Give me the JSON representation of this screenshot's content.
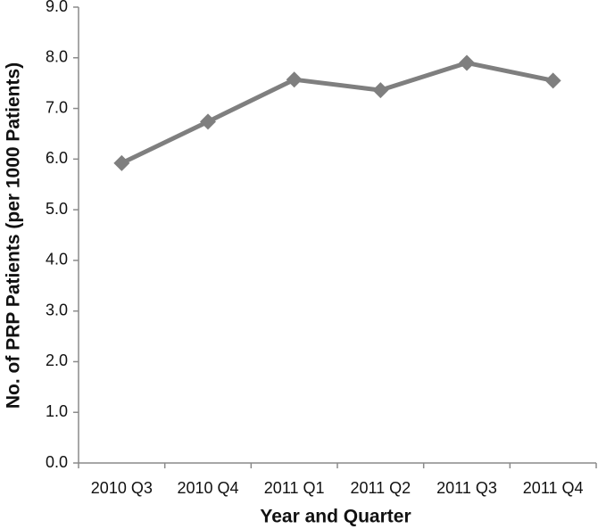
{
  "chart_data": {
    "type": "line",
    "x_label": "Year and Quarter",
    "y_label": "No. of PRP Patients (per 1000 Patients)",
    "categories": [
      "2010 Q3",
      "2010 Q4",
      "2011 Q1",
      "2011 Q2",
      "2011 Q3",
      "2011 Q4"
    ],
    "series": [
      {
        "name": "PRP Patients",
        "color": "#7f7f7f",
        "values": [
          5.92,
          6.74,
          7.57,
          7.36,
          7.9,
          7.55
        ]
      }
    ],
    "ylim": [
      0,
      9
    ],
    "yticks": [
      {
        "value": 0,
        "label": "0.0"
      },
      {
        "value": 1,
        "label": "1.0"
      },
      {
        "value": 2,
        "label": "2.0"
      },
      {
        "value": 3,
        "label": "3.0"
      },
      {
        "value": 4,
        "label": "4.0"
      },
      {
        "value": 5,
        "label": "5.0"
      },
      {
        "value": 6,
        "label": "6.0"
      },
      {
        "value": 7,
        "label": "7.0"
      },
      {
        "value": 8,
        "label": "8.0"
      },
      {
        "value": 9,
        "label": "9.0"
      }
    ],
    "grid": false
  }
}
